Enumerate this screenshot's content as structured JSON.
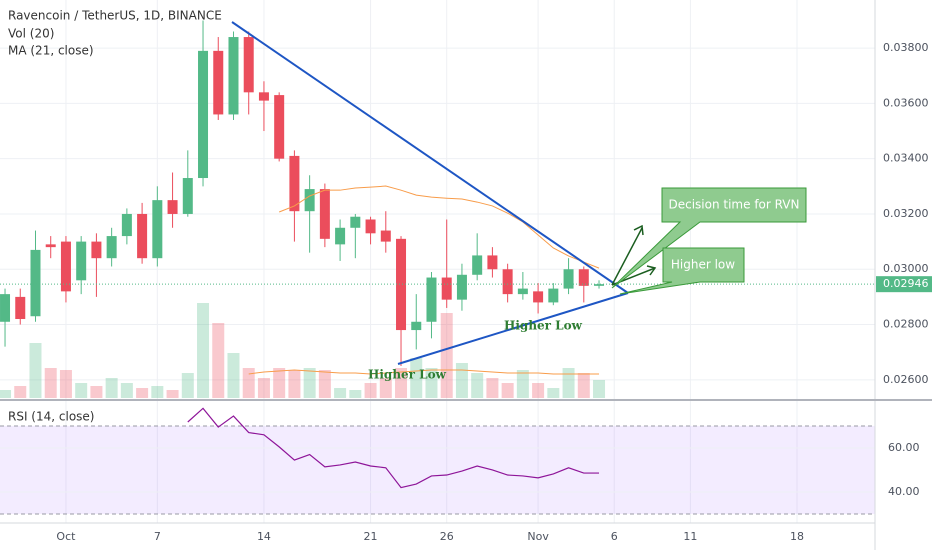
{
  "chart_data": {
    "type": "candlestick",
    "title": "Ravencoin / TetherUS, 1D, BINANCE",
    "indicators": [
      "Vol (20)",
      "MA (21, close)"
    ],
    "x": [
      0,
      1,
      2,
      3,
      4,
      5,
      6,
      7,
      8,
      9,
      10,
      11,
      12,
      13,
      14,
      15,
      16,
      17,
      18,
      19,
      20,
      21,
      22,
      23,
      24,
      25,
      26,
      27,
      28,
      29,
      30,
      31,
      32,
      33,
      34,
      35,
      36,
      37,
      38,
      39
    ],
    "xlim": [
      -0.33,
      57.12
    ],
    "xticks": [
      {
        "value": 4,
        "label": "Oct"
      },
      {
        "value": 10,
        "label": "7"
      },
      {
        "value": 17,
        "label": "14"
      },
      {
        "value": 24,
        "label": "21"
      },
      {
        "value": 29,
        "label": "26"
      },
      {
        "value": 35,
        "label": "Nov"
      },
      {
        "value": 40,
        "label": "6"
      },
      {
        "value": 45,
        "label": "11"
      },
      {
        "value": 52,
        "label": "18"
      }
    ],
    "ylim": [
      0.02527,
      0.03974
    ],
    "yticks": [
      {
        "value": 0.026,
        "label": "0.02600"
      },
      {
        "value": 0.028,
        "label": "0.02800"
      },
      {
        "value": 0.03,
        "label": "0.03000"
      },
      {
        "value": 0.032,
        "label": "0.03200"
      },
      {
        "value": 0.034,
        "label": "0.03400"
      },
      {
        "value": 0.036,
        "label": "0.03600"
      },
      {
        "value": 0.038,
        "label": "0.03800"
      }
    ],
    "open": [
      0.0281,
      0.029,
      0.0283,
      0.0309,
      0.031,
      0.0296,
      0.031,
      0.0304,
      0.0312,
      0.032,
      0.0304,
      0.0325,
      0.032,
      0.0333,
      0.0379,
      0.0356,
      0.0384,
      0.0364,
      0.0363,
      0.0341,
      0.0321,
      0.0329,
      0.0309,
      0.0315,
      0.0318,
      0.0314,
      0.0311,
      0.0278,
      0.0281,
      0.0297,
      0.0289,
      0.0298,
      0.0305,
      0.03,
      0.0291,
      0.0292,
      0.0288,
      0.0293,
      0.03,
      0.0294
    ],
    "high": [
      0.0293,
      0.0293,
      0.0314,
      0.0312,
      0.0312,
      0.0312,
      0.0313,
      0.0315,
      0.0322,
      0.0324,
      0.033,
      0.0335,
      0.0343,
      0.039,
      0.0384,
      0.0386,
      0.0386,
      0.0368,
      0.0364,
      0.0343,
      0.0334,
      0.0331,
      0.0318,
      0.032,
      0.0319,
      0.0321,
      0.0312,
      0.0291,
      0.0299,
      0.0318,
      0.0302,
      0.0313,
      0.0308,
      0.0302,
      0.0299,
      0.0295,
      0.0295,
      0.0304,
      0.0301,
      0.0296
    ],
    "low": [
      0.0272,
      0.028,
      0.0281,
      0.0304,
      0.0288,
      0.0291,
      0.029,
      0.0301,
      0.0309,
      0.0302,
      0.0301,
      0.0315,
      0.0319,
      0.033,
      0.0354,
      0.0354,
      0.0356,
      0.035,
      0.0339,
      0.031,
      0.0306,
      0.0308,
      0.0303,
      0.0304,
      0.0309,
      0.0306,
      0.0265,
      0.0271,
      0.0275,
      0.0286,
      0.0285,
      0.0296,
      0.0297,
      0.0288,
      0.0289,
      0.0284,
      0.0287,
      0.0291,
      0.0288,
      0.0293
    ],
    "close": [
      0.0291,
      0.0282,
      0.0307,
      0.0308,
      0.0292,
      0.031,
      0.0304,
      0.0312,
      0.032,
      0.0304,
      0.0325,
      0.032,
      0.0333,
      0.0379,
      0.0356,
      0.0384,
      0.0364,
      0.0361,
      0.034,
      0.0321,
      0.0329,
      0.0311,
      0.0315,
      0.0319,
      0.0313,
      0.031,
      0.0278,
      0.0281,
      0.0297,
      0.0289,
      0.0298,
      0.0305,
      0.03,
      0.0291,
      0.0293,
      0.0288,
      0.0293,
      0.03,
      0.0294,
      0.02946
    ],
    "up_color": "#53b987",
    "down_color": "#eb4d5c",
    "volume": [
      8,
      12,
      55,
      30,
      28,
      15,
      12,
      20,
      15,
      10,
      12,
      8,
      25,
      95,
      75,
      45,
      30,
      20,
      30,
      28,
      30,
      28,
      10,
      8,
      15,
      20,
      30,
      40,
      30,
      85,
      35,
      25,
      20,
      15,
      28,
      15,
      10,
      30,
      25,
      18
    ],
    "volume_ma": [
      null,
      null,
      null,
      null,
      null,
      null,
      null,
      null,
      null,
      null,
      null,
      null,
      null,
      null,
      null,
      null,
      24,
      26,
      27,
      28,
      27,
      26,
      25,
      25,
      24,
      25,
      26,
      27,
      28,
      28,
      28,
      27,
      26,
      25,
      25,
      25,
      24,
      24,
      24,
      24
    ],
    "volume_ma_color": "#f89c4a",
    "ma": [
      null,
      null,
      null,
      null,
      null,
      null,
      null,
      null,
      null,
      null,
      null,
      null,
      null,
      null,
      null,
      null,
      null,
      null,
      0.03207,
      0.03229,
      0.03265,
      0.03286,
      0.03286,
      0.03294,
      0.03297,
      0.03301,
      0.03286,
      0.03268,
      0.03261,
      0.03257,
      0.03254,
      0.03243,
      0.03229,
      0.03203,
      0.03171,
      0.03124,
      0.03077,
      0.03048,
      0.03026,
      0.03004
    ],
    "ma_color": "#f89c4a",
    "last_price": {
      "value": 0.02946,
      "label": "0.02946"
    },
    "rsi": {
      "title": "RSI (14, close)",
      "values": [
        null,
        null,
        null,
        null,
        null,
        null,
        null,
        null,
        null,
        null,
        null,
        null,
        71.8,
        78,
        69.5,
        74.5,
        67,
        66,
        60.5,
        54.5,
        57,
        51.4,
        52.3,
        53.6,
        51.8,
        51,
        42,
        43.6,
        47.3,
        47.7,
        49.5,
        51.8,
        50,
        47.7,
        47.3,
        46.4,
        48.2,
        51,
        48.6,
        48.6
      ],
      "ylim": [
        25.9,
        81.8
      ],
      "yticks": [
        {
          "value": 40,
          "label": "40.00"
        },
        {
          "value": 60,
          "label": "60.00"
        }
      ],
      "band": [
        30,
        70
      ],
      "color": "#8e1599"
    },
    "annotations": [
      "Decision time for RVN",
      "Higher low",
      "Higher Low",
      "Higher Low"
    ],
    "grid": true
  }
}
